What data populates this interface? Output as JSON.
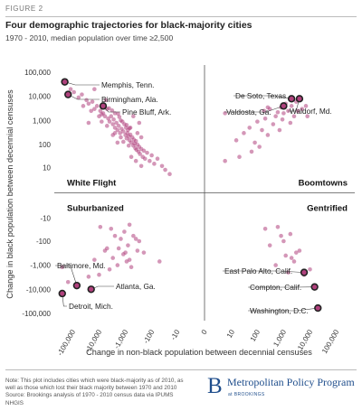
{
  "header": {
    "figure_label": "FIGURE 2",
    "title": "Four demographic trajectories for black-majority cities",
    "subtitle": "1970 - 2010, median population over time ≥2,500"
  },
  "chart_data": {
    "type": "scatter",
    "xlabel": "Change in non-black population between decennial censuses",
    "ylabel": "Change in black population between decennial censuses",
    "x_scale": "symlog",
    "y_scale": "symlog",
    "x_ticks": [
      "-100,000",
      "-10,000",
      "-1,000",
      "-100",
      "-10",
      "0",
      "10",
      "100",
      "1,000",
      "10,000",
      "100,000"
    ],
    "y_ticks": [
      "100,000",
      "10,000",
      "1,000",
      "100",
      "10",
      "-10",
      "-100",
      "-1,000",
      "-10,000",
      "-100,000"
    ],
    "xlim": [
      -500000,
      500000
    ],
    "ylim": [
      -200000,
      200000
    ],
    "point_color": "#b0417d",
    "highlight_stroke": "#222222",
    "quadrants": [
      {
        "label": "White Flight",
        "position": "top-left"
      },
      {
        "label": "Boomtowns",
        "position": "top-right"
      },
      {
        "label": "Suburbanized",
        "position": "bottom-left"
      },
      {
        "label": "Gentrified",
        "position": "bottom-right"
      }
    ],
    "highlighted": [
      {
        "label": "Memphis, Tenn.",
        "x": -200000,
        "y": 40000
      },
      {
        "label": "Birmingham, Ala.",
        "x": -150000,
        "y": 12000
      },
      {
        "label": "Pine Bluff, Ark.",
        "x": -7000,
        "y": 4000
      },
      {
        "label": "De Soto, Texas",
        "x": 2000,
        "y": 8000
      },
      {
        "label": "Valdosta, Ga.",
        "x": 1000,
        "y": 4000
      },
      {
        "label": "Waldorf, Md.",
        "x": 4000,
        "y": 8000
      },
      {
        "label": "Baltimore, Md.",
        "x": -70000,
        "y": -7000
      },
      {
        "label": "Atlanta, Ga.",
        "x": -20000,
        "y": -10000
      },
      {
        "label": "Detroit, Mich.",
        "x": -250000,
        "y": -15000
      },
      {
        "label": "East Palo Alto, Calif.",
        "x": 6000,
        "y": -2000
      },
      {
        "label": "Compton, Calif.",
        "x": 15000,
        "y": -8000
      },
      {
        "label": "Washington, D.C.",
        "x": 20000,
        "y": -60000
      }
    ],
    "points": [
      [
        -120000,
        20000
      ],
      [
        -90000,
        15000
      ],
      [
        -60000,
        9000
      ],
      [
        -45000,
        12000
      ],
      [
        -30000,
        7000
      ],
      [
        -25000,
        5000
      ],
      [
        -18000,
        6000
      ],
      [
        -15000,
        3000
      ],
      [
        -12000,
        4000
      ],
      [
        -9000,
        2500
      ],
      [
        -8000,
        1800
      ],
      [
        -7000,
        2000
      ],
      [
        -6000,
        1500
      ],
      [
        -5000,
        3000
      ],
      [
        -4500,
        1200
      ],
      [
        -4000,
        900
      ],
      [
        -3500,
        1500
      ],
      [
        -3000,
        700
      ],
      [
        -2800,
        1100
      ],
      [
        -2500,
        500
      ],
      [
        -2200,
        800
      ],
      [
        -2000,
        400
      ],
      [
        -1800,
        600
      ],
      [
        -1600,
        300
      ],
      [
        -1500,
        1000
      ],
      [
        -1400,
        450
      ],
      [
        -1200,
        350
      ],
      [
        -1100,
        700
      ],
      [
        -1000,
        250
      ],
      [
        -950,
        500
      ],
      [
        -900,
        180
      ],
      [
        -850,
        300
      ],
      [
        -800,
        400
      ],
      [
        -750,
        220
      ],
      [
        -700,
        150
      ],
      [
        -650,
        260
      ],
      [
        -600,
        120
      ],
      [
        -550,
        200
      ],
      [
        -500,
        90
      ],
      [
        -480,
        160
      ],
      [
        -450,
        110
      ],
      [
        -420,
        70
      ],
      [
        -400,
        140
      ],
      [
        -380,
        60
      ],
      [
        -350,
        100
      ],
      [
        -320,
        50
      ],
      [
        -300,
        80
      ],
      [
        -280,
        40
      ],
      [
        -250,
        65
      ],
      [
        -220,
        30
      ],
      [
        -200,
        55
      ],
      [
        -180,
        25
      ],
      [
        -150,
        45
      ],
      [
        -120,
        20
      ],
      [
        -100,
        35
      ],
      [
        -80,
        15
      ],
      [
        -60,
        25
      ],
      [
        -40,
        12
      ],
      [
        -30,
        8
      ],
      [
        -20,
        5
      ],
      [
        -2500,
        2000
      ],
      [
        -1700,
        1400
      ],
      [
        -1300,
        900
      ],
      [
        -900,
        650
      ],
      [
        -700,
        480
      ],
      [
        -2000,
        120
      ],
      [
        -3000,
        250
      ],
      [
        -5000,
        600
      ],
      [
        -8000,
        900
      ],
      [
        -10000,
        1500
      ],
      [
        -20000,
        2500
      ],
      [
        -40000,
        4000
      ],
      [
        -25000,
        800
      ],
      [
        -600,
        30
      ],
      [
        -400,
        20
      ],
      [
        -1500,
        200
      ],
      [
        -2500,
        300
      ],
      [
        -650,
        500
      ],
      [
        -1900,
        1900
      ],
      [
        -3200,
        2600
      ],
      [
        -4200,
        3200
      ],
      [
        -350,
        300
      ],
      [
        -250,
        200
      ],
      [
        -1200,
        130
      ],
      [
        -750,
        90
      ],
      [
        -15000,
        20000
      ],
      [
        -5500,
        7000
      ],
      [
        -250,
        12
      ],
      [
        -500,
        1500
      ],
      [
        -300,
        800
      ],
      [
        5,
        2000
      ],
      [
        15,
        150
      ],
      [
        30,
        300
      ],
      [
        50,
        500
      ],
      [
        80,
        120
      ],
      [
        100,
        900
      ],
      [
        150,
        400
      ],
      [
        200,
        1200
      ],
      [
        250,
        250
      ],
      [
        300,
        3000
      ],
      [
        400,
        700
      ],
      [
        500,
        1500
      ],
      [
        600,
        2200
      ],
      [
        700,
        400
      ],
      [
        800,
        3500
      ],
      [
        900,
        1100
      ],
      [
        1000,
        2000
      ],
      [
        1200,
        5000
      ],
      [
        1500,
        2500
      ],
      [
        1800,
        800
      ],
      [
        2000,
        4000
      ],
      [
        2500,
        1500
      ],
      [
        3000,
        6000
      ],
      [
        3500,
        2500
      ],
      [
        5000,
        3000
      ],
      [
        7000,
        4000
      ],
      [
        8000,
        1500
      ],
      [
        60,
        50
      ],
      [
        120,
        80
      ],
      [
        180,
        2500
      ],
      [
        250,
        3500
      ],
      [
        20,
        30
      ],
      [
        5,
        20
      ],
      [
        -1000,
        -300
      ],
      [
        -3000,
        -500
      ],
      [
        -5000,
        -200
      ],
      [
        -800,
        -150
      ],
      [
        -2000,
        -1000
      ],
      [
        -400,
        -80
      ],
      [
        -1500,
        -80
      ],
      [
        -600,
        -1200
      ],
      [
        -10000,
        -2500
      ],
      [
        -15000,
        -600
      ],
      [
        -700,
        -600
      ],
      [
        -300,
        -100
      ],
      [
        -2500,
        -60
      ],
      [
        -4000,
        -1500
      ],
      [
        -1200,
        -350
      ],
      [
        -900,
        -700
      ],
      [
        -350,
        -250
      ],
      [
        -25000,
        -3000
      ],
      [
        -6000,
        -250
      ],
      [
        -1800,
        -200
      ],
      [
        -500,
        -60
      ],
      [
        -9000,
        -25
      ],
      [
        -3500,
        -30
      ],
      [
        -1100,
        -40
      ],
      [
        -700,
        -20
      ],
      [
        -50,
        -700
      ],
      [
        -200,
        -300
      ],
      [
        -250000,
        -1200
      ],
      [
        -150000,
        -5000
      ],
      [
        200,
        -30
      ],
      [
        1000,
        -100
      ],
      [
        3000,
        -300
      ],
      [
        500,
        -1000
      ],
      [
        1500,
        -2000
      ],
      [
        4000,
        -250
      ],
      [
        800,
        -60
      ],
      [
        300,
        -150
      ],
      [
        2000,
        -500
      ],
      [
        6000,
        -2500
      ],
      [
        2500,
        -700
      ],
      [
        1200,
        -400
      ],
      [
        10000,
        -1500
      ],
      [
        600,
        -25
      ],
      [
        1800,
        -50
      ]
    ]
  },
  "footer": {
    "note": "Note: This plot includes cities which were black-majority as of 2010, as well as those which lost their black majority between 1970 and 2010",
    "source": "Source: Brookings analysis of 1970 - 2010 census data via IPUMS NHGIS",
    "logo_mark": "B",
    "logo_name": "Metropolitan Policy Program",
    "logo_sub": "at BROOKINGS"
  }
}
